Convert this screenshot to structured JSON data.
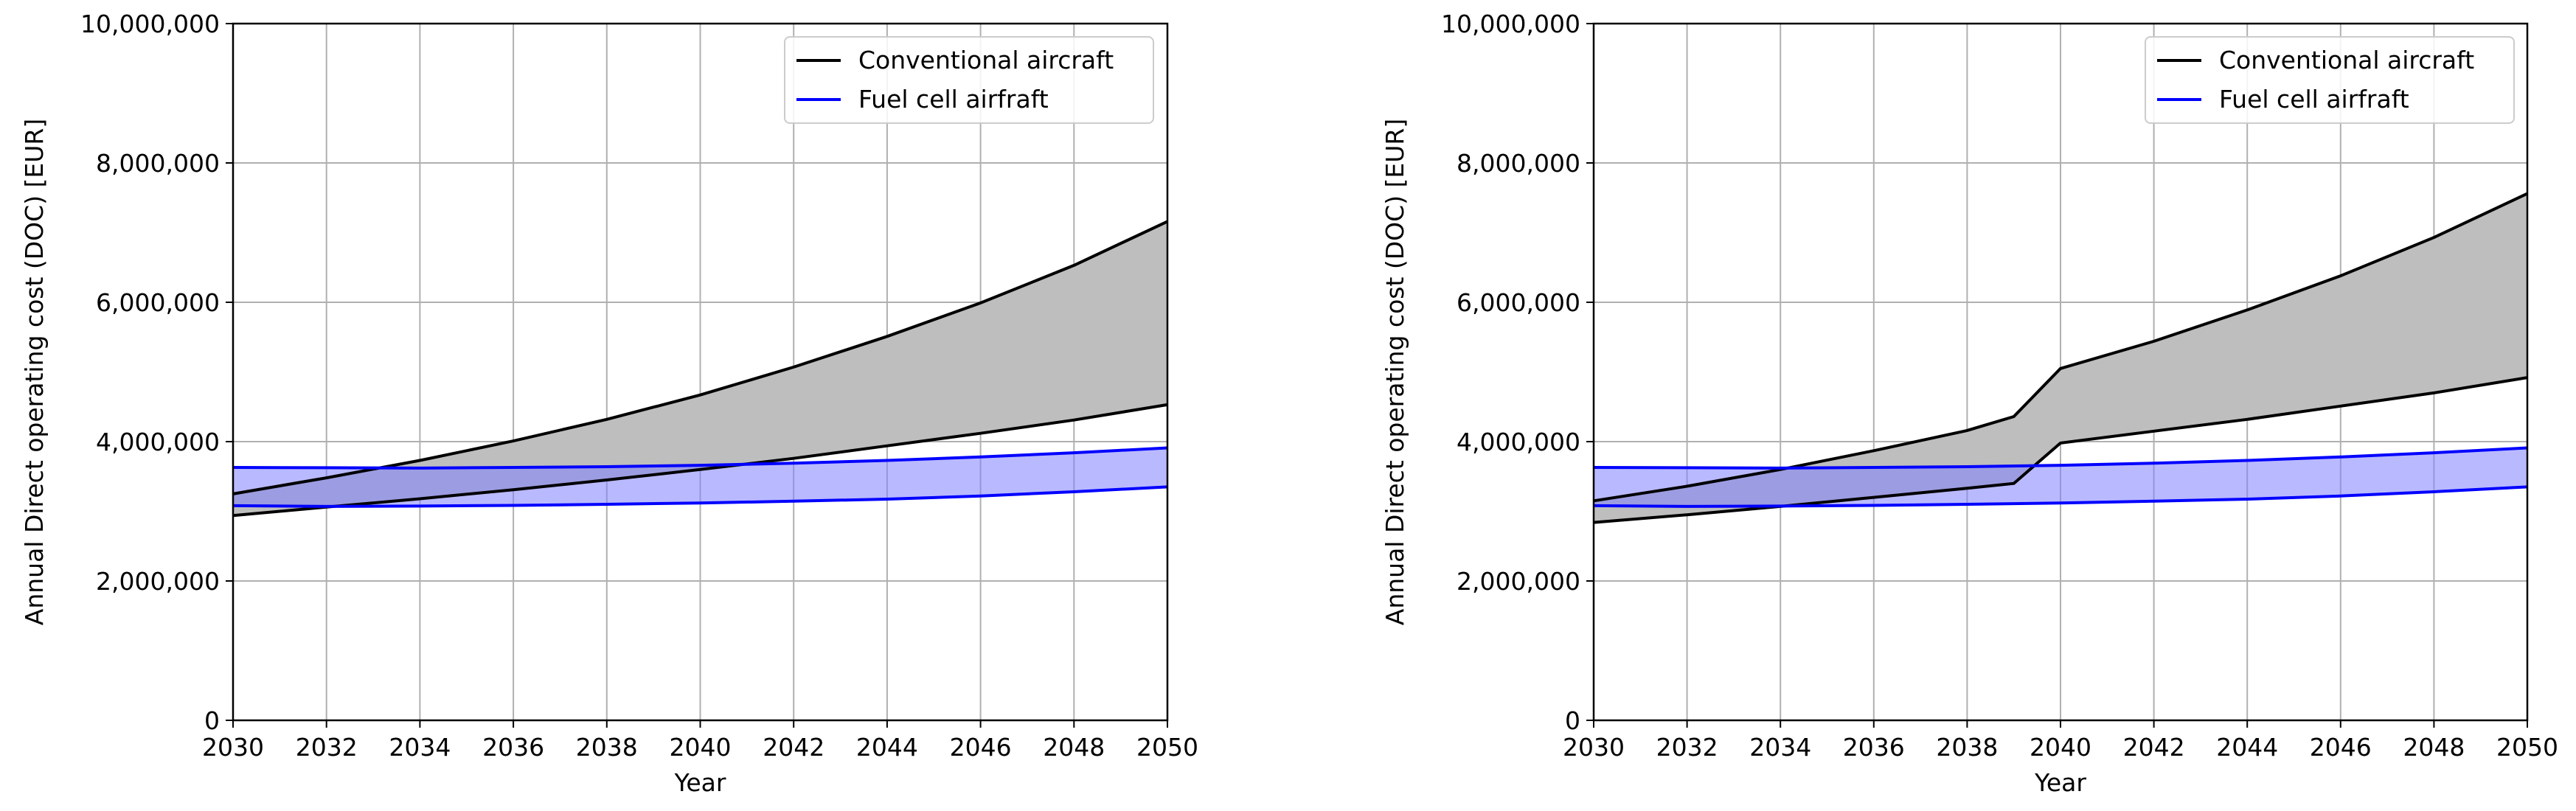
{
  "chart_data": [
    {
      "type": "area",
      "title": "",
      "xlabel": "Year",
      "ylabel": "Annual Direct operating cost (DOC) [EUR]",
      "xlim": [
        2030,
        2050
      ],
      "ylim": [
        0,
        10000000
      ],
      "x_ticks": [
        "2030",
        "2032",
        "2034",
        "2036",
        "2038",
        "2040",
        "2042",
        "2044",
        "2046",
        "2048",
        "2050"
      ],
      "y_ticks": [
        "0",
        "2,000,000",
        "4,000,000",
        "6,000,000",
        "8,000,000",
        "10,000,000"
      ],
      "grid": true,
      "legend_position": "top-right",
      "series": [
        {
          "name": "Conventional aircraft",
          "color": "#000000",
          "fill": "#bebebe",
          "x": [
            2030,
            2032,
            2034,
            2036,
            2038,
            2040,
            2042,
            2044,
            2046,
            2048,
            2050
          ],
          "upper": [
            3250000,
            3480000,
            3730000,
            4010000,
            4320000,
            4670000,
            5070000,
            5510000,
            5990000,
            6530000,
            7160000
          ],
          "lower": [
            2940000,
            3060000,
            3180000,
            3310000,
            3450000,
            3600000,
            3760000,
            3940000,
            4120000,
            4310000,
            4530000
          ]
        },
        {
          "name": "Fuel cell airfraft",
          "color": "#0000ff",
          "fill": "#7f7fff",
          "x": [
            2030,
            2032,
            2034,
            2036,
            2038,
            2040,
            2042,
            2044,
            2046,
            2048,
            2050
          ],
          "upper": [
            3630000,
            3625000,
            3620000,
            3630000,
            3640000,
            3660000,
            3690000,
            3730000,
            3780000,
            3840000,
            3910000
          ],
          "lower": [
            3080000,
            3070000,
            3075000,
            3085000,
            3100000,
            3120000,
            3145000,
            3175000,
            3220000,
            3280000,
            3350000
          ]
        }
      ]
    },
    {
      "type": "area",
      "title": "",
      "xlabel": "Year",
      "ylabel": "Annual Direct operating cost (DOC) [EUR]",
      "xlim": [
        2030,
        2050
      ],
      "ylim": [
        0,
        10000000
      ],
      "x_ticks": [
        "2030",
        "2032",
        "2034",
        "2036",
        "2038",
        "2040",
        "2042",
        "2044",
        "2046",
        "2048",
        "2050"
      ],
      "y_ticks": [
        "0",
        "2,000,000",
        "4,000,000",
        "6,000,000",
        "8,000,000",
        "10,000,000"
      ],
      "grid": true,
      "legend_position": "top-right",
      "series": [
        {
          "name": "Conventional aircraft",
          "color": "#000000",
          "fill": "#bebebe",
          "x": [
            2030,
            2032,
            2034,
            2036,
            2038,
            2039,
            2040,
            2042,
            2044,
            2046,
            2048,
            2050
          ],
          "upper": [
            3150000,
            3360000,
            3600000,
            3870000,
            4160000,
            4360000,
            5050000,
            5440000,
            5890000,
            6380000,
            6930000,
            7560000
          ],
          "lower": [
            2840000,
            2950000,
            3070000,
            3200000,
            3330000,
            3400000,
            3980000,
            4150000,
            4320000,
            4510000,
            4700000,
            4920000
          ]
        },
        {
          "name": "Fuel cell airfraft",
          "color": "#0000ff",
          "fill": "#7f7fff",
          "x": [
            2030,
            2032,
            2034,
            2036,
            2038,
            2040,
            2042,
            2044,
            2046,
            2048,
            2050
          ],
          "upper": [
            3630000,
            3625000,
            3620000,
            3630000,
            3640000,
            3660000,
            3690000,
            3730000,
            3780000,
            3840000,
            3910000
          ],
          "lower": [
            3080000,
            3070000,
            3075000,
            3085000,
            3100000,
            3120000,
            3145000,
            3175000,
            3220000,
            3280000,
            3350000
          ]
        }
      ]
    }
  ]
}
